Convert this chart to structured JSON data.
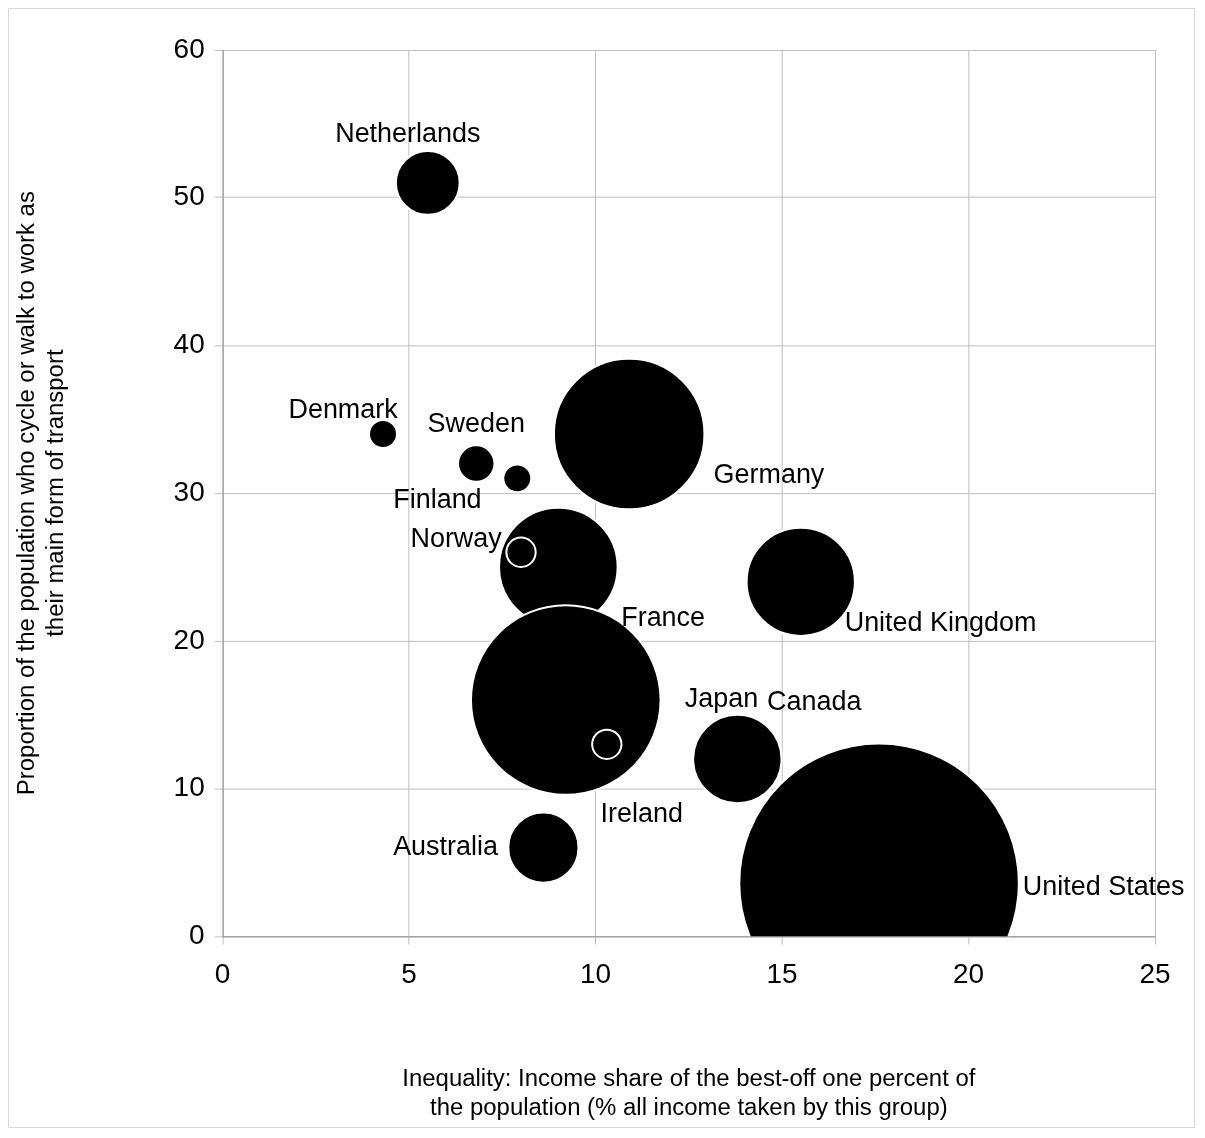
{
  "chart_data": {
    "type": "bubble",
    "xlabel": "Inequality: Income share of the best-off one percent of the population (% all income taken by this group)",
    "ylabel": "Proportion of the population who cycle or walk to work as their main form of transport",
    "series": [
      {
        "color": "#000000",
        "x": [
          5.5,
          4.3,
          6.8,
          7.9,
          9.0,
          8.0,
          10.9,
          15.5,
          9.2,
          10.3,
          13.8,
          8.6,
          17.6
        ],
        "values": [
          51,
          34,
          32,
          31,
          25,
          26,
          34,
          24,
          16,
          13,
          12,
          6,
          3.6
        ],
        "sizes": [
          0.052,
          0.01,
          0.017,
          0.01,
          0.18,
          0.011,
          0.29,
          0.15,
          0.46,
          0.011,
          0.1,
          0.063,
          1
        ]
      }
    ],
    "annotations": [
      "Netherlands",
      "Denmark",
      "Sweden",
      "Finland",
      "France",
      "Norway",
      "Germany",
      "United Kingdom",
      "Japan",
      "Ireland",
      "Canada",
      "Australia",
      "United States"
    ],
    "xlim": [
      0,
      25
    ],
    "xticks": [
      0,
      5,
      10,
      15,
      20,
      25
    ],
    "ylim": [
      0,
      60
    ],
    "yticks": [
      0,
      10,
      20,
      30,
      40,
      50,
      60
    ],
    "grid": true,
    "legend": false
  }
}
